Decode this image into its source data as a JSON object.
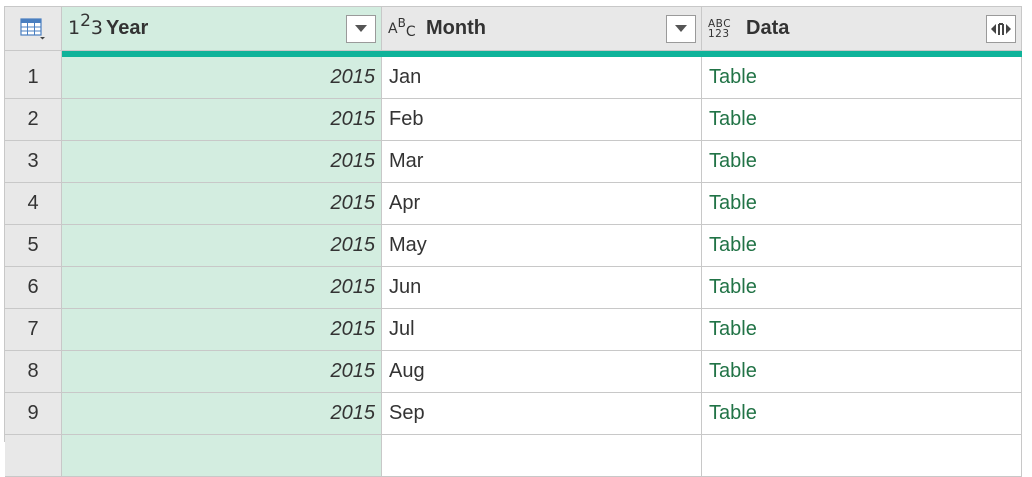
{
  "columns": [
    {
      "type_icon": "integer-type-icon",
      "label": "Year",
      "button": "dropdown"
    },
    {
      "type_icon": "text-type-icon",
      "label": "Month",
      "button": "dropdown"
    },
    {
      "type_icon": "any-type-icon",
      "label": "Data",
      "button": "expand"
    }
  ],
  "rows": [
    {
      "n": "1",
      "year": "2015",
      "month": "Jan",
      "data": "Table"
    },
    {
      "n": "2",
      "year": "2015",
      "month": "Feb",
      "data": "Table"
    },
    {
      "n": "3",
      "year": "2015",
      "month": "Mar",
      "data": "Table"
    },
    {
      "n": "4",
      "year": "2015",
      "month": "Apr",
      "data": "Table"
    },
    {
      "n": "5",
      "year": "2015",
      "month": "May",
      "data": "Table"
    },
    {
      "n": "6",
      "year": "2015",
      "month": "Jun",
      "data": "Table"
    },
    {
      "n": "7",
      "year": "2015",
      "month": "Jul",
      "data": "Table"
    },
    {
      "n": "8",
      "year": "2015",
      "month": "Aug",
      "data": "Table"
    },
    {
      "n": "9",
      "year": "2015",
      "month": "Sep",
      "data": "Table"
    }
  ],
  "colors": {
    "selected_column": "#d3ede0",
    "quality_bar": "#0fb39a",
    "table_link": "#217346",
    "header_bg": "#e8e8e8"
  }
}
